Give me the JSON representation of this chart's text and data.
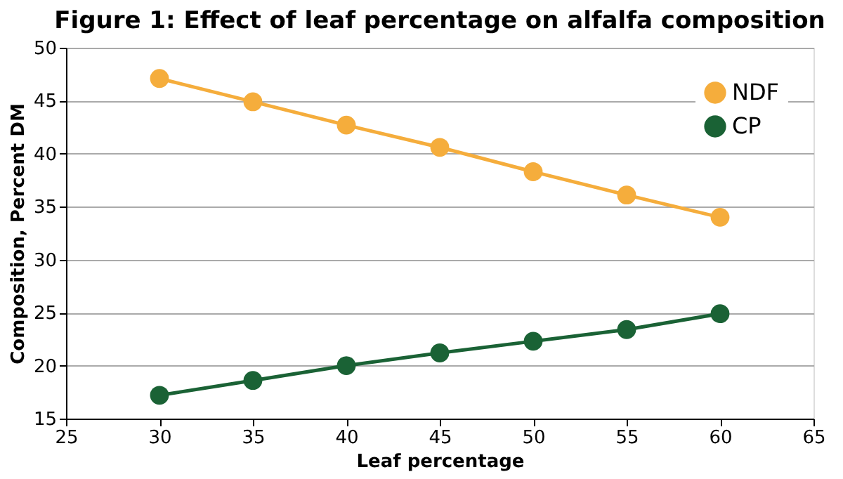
{
  "chart_data": {
    "type": "line",
    "title": "Figure 1: Effect of leaf percentage on alfalfa composition",
    "xlabel": "Leaf percentage",
    "ylabel": "Composition, Percent DM",
    "x": [
      30,
      35,
      40,
      45,
      50,
      55,
      60
    ],
    "series": [
      {
        "name": "NDF",
        "color": "#f5ad3c",
        "values": [
          47.1,
          44.9,
          42.7,
          40.6,
          38.3,
          36.1,
          34.0
        ]
      },
      {
        "name": "CP",
        "color": "#1a6235",
        "values": [
          17.2,
          18.6,
          20.0,
          21.2,
          22.3,
          23.4,
          24.9
        ]
      }
    ],
    "xlim": [
      25,
      65
    ],
    "xticks": [
      25,
      30,
      35,
      40,
      45,
      50,
      55,
      60,
      65
    ],
    "ylim": [
      15,
      50
    ],
    "yticks": [
      15,
      20,
      25,
      30,
      35,
      40,
      45,
      50
    ],
    "grid": "y",
    "legend": "top right",
    "marker": "circle",
    "line_style": "solid"
  }
}
